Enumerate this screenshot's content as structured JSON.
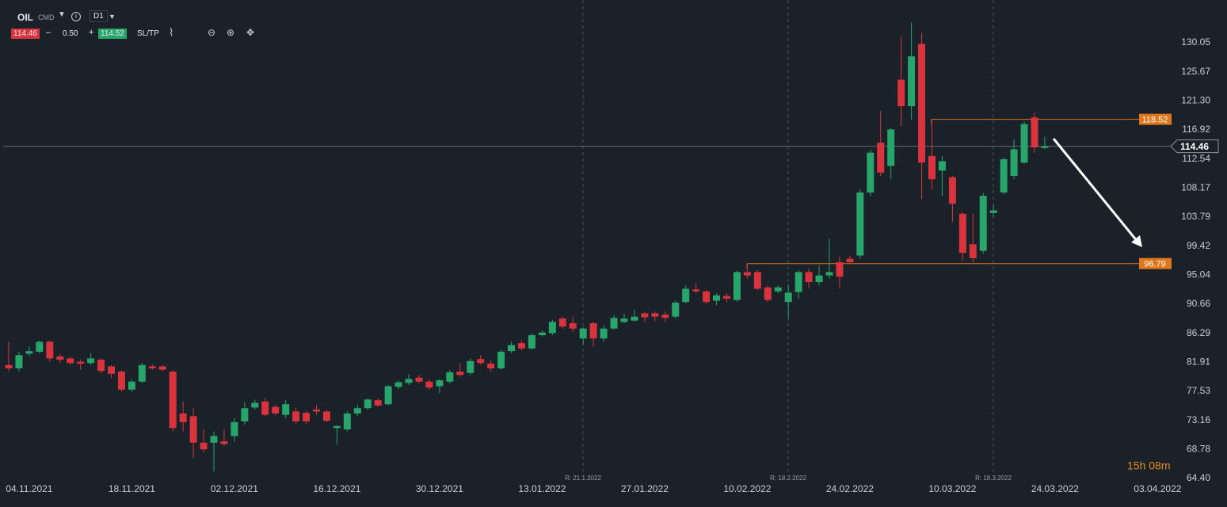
{
  "toolbar": {
    "symbol": "OIL",
    "market": "CMD",
    "timeframe": "D1",
    "bid": "114.46",
    "spread": "0.50",
    "ask": "114.52",
    "sltp": "SL/TP"
  },
  "chart_data": {
    "type": "candlestick",
    "categories": [
      null,
      null,
      "04.11.2021",
      null,
      null,
      null,
      null,
      null,
      null,
      null,
      null,
      null,
      "18.11.2021",
      null,
      null,
      null,
      null,
      null,
      null,
      null,
      null,
      null,
      "02.12.2021",
      null,
      null,
      null,
      null,
      null,
      null,
      null,
      null,
      null,
      "16.12.2021",
      null,
      null,
      null,
      null,
      null,
      null,
      null,
      null,
      null,
      "30.12.2021",
      null,
      null,
      null,
      null,
      null,
      null,
      null,
      null,
      null,
      "13.01.2022",
      null,
      null,
      null,
      null,
      null,
      null,
      null,
      null,
      null,
      "27.01.2022",
      null,
      null,
      null,
      null,
      null,
      null,
      null,
      null,
      null,
      "10.02.2022",
      null,
      null,
      null,
      null,
      null,
      null,
      null,
      null,
      null,
      "24.02.2022",
      null,
      null,
      null,
      null,
      null,
      null,
      null,
      null,
      null,
      "10.03.2022",
      null,
      null,
      null,
      null,
      null,
      null,
      null,
      null,
      null,
      "24.03.2022",
      null,
      null,
      null,
      null,
      null,
      null,
      null,
      null,
      null,
      "03.04.2022"
    ],
    "open": [
      81.5,
      81.0,
      83.2,
      83.5,
      85.0,
      82.8,
      82.5,
      82.0,
      81.8,
      82.3,
      81.3,
      80.5,
      77.8,
      79.0,
      81.3,
      81.3,
      80.5,
      74.2,
      73.8,
      69.8,
      69.8,
      70.0,
      70.8,
      73.0,
      75.1,
      76.0,
      75.2,
      74.0,
      74.5,
      74.3,
      74.8,
      74.5,
      72.0,
      71.8,
      74.2,
      75.0,
      76.2,
      75.6,
      78.2,
      78.8,
      79.6,
      79.0,
      78.3,
      79.0,
      80.5,
      80.3,
      82.4,
      81.7,
      81.0,
      83.6,
      84.8,
      84.0,
      86.0,
      86.3,
      88.5,
      87.8,
      85.5,
      87.8,
      85.5,
      87.0,
      88.0,
      88.2,
      89.3,
      89.3,
      89.1,
      88.8,
      91.0,
      92.9,
      92.6,
      91.2,
      91.9,
      91.3,
      95.5,
      95.5,
      93.2,
      92.6,
      91.0,
      92.5,
      95.5,
      94.0,
      95.0,
      97.0,
      97.5,
      98.0,
      107.5,
      115.0,
      111.5,
      124.5,
      120.5,
      129.9,
      113.0,
      110.8,
      109.8,
      104.3,
      99.7,
      98.7,
      104.4,
      107.5,
      110.0,
      112.0,
      118.8,
      114.2,
      null,
      null,
      null,
      null,
      null,
      null,
      null,
      null,
      null,
      null,
      null
    ],
    "high": [
      85,
      83.5,
      84.3,
      85.2,
      85.2,
      83.2,
      82.8,
      82.3,
      83.3,
      82.5,
      81.5,
      80.7,
      79.3,
      81.8,
      81.6,
      81.5,
      80.7,
      76.0,
      75.0,
      71.8,
      71.5,
      71.8,
      73.5,
      75.9,
      76.3,
      76.5,
      75.5,
      76.2,
      75.1,
      74.6,
      75.5,
      74.8,
      72.5,
      74.5,
      75.5,
      76.5,
      76.5,
      78.5,
      79.2,
      80.1,
      80.0,
      79.3,
      79.4,
      80.8,
      81.8,
      82.5,
      83.0,
      82.2,
      83.8,
      85.0,
      85.2,
      86.3,
      86.7,
      88.3,
      88.8,
      88.8,
      87.2,
      88.0,
      87.5,
      89.0,
      89.2,
      89.8,
      89.5,
      89.6,
      89.6,
      91.2,
      93.5,
      93.9,
      92.8,
      92.3,
      92.3,
      95.7,
      96.8,
      95.8,
      93.5,
      93.5,
      93.6,
      95.8,
      96.0,
      96.5,
      100.5,
      97.8,
      98.0,
      108.0,
      113.9,
      119.8,
      117.2,
      131.0,
      133.1,
      131.5,
      118.5,
      113.0,
      110.0,
      104.5,
      104.3,
      107.4,
      105.6,
      112.8,
      115.5,
      118.2,
      119.5,
      115.9,
      null,
      null,
      null,
      null,
      null,
      null,
      null,
      null,
      null,
      null,
      null
    ],
    "low": [
      80.5,
      80.5,
      82.8,
      83.3,
      82.0,
      81.8,
      81.5,
      80.8,
      81.5,
      80.3,
      79.5,
      77.5,
      77.5,
      78.8,
      80.8,
      80.6,
      71.5,
      71.5,
      67.5,
      68.3,
      65.5,
      69.3,
      70.0,
      72.5,
      74.8,
      73.8,
      73.9,
      73.5,
      72.7,
      72.5,
      74.0,
      72.9,
      69.5,
      71.5,
      73.8,
      74.8,
      75.2,
      75.4,
      77.9,
      78.5,
      78.8,
      77.8,
      77.3,
      78.7,
      79.7,
      80.0,
      81.5,
      80.5,
      80.8,
      83.3,
      83.7,
      83.8,
      85.8,
      86.0,
      87.0,
      86.5,
      84.5,
      84.3,
      85.0,
      86.8,
      87.8,
      88.0,
      88.0,
      88.1,
      88.0,
      88.5,
      90.8,
      92.3,
      90.7,
      90.5,
      91.0,
      91.0,
      94.5,
      92.8,
      91.0,
      92.3,
      88.5,
      91.5,
      93.0,
      93.5,
      94.5,
      93.0,
      96.7,
      97.5,
      107.0,
      110.0,
      109.5,
      117.5,
      118.5,
      106.5,
      108.0,
      107.0,
      103.0,
      97.2,
      97.0,
      98.3,
      103.8,
      107.2,
      109.5,
      111.8,
      113.5,
      114.0,
      null,
      null,
      null,
      null,
      null,
      null,
      null,
      null,
      null,
      null,
      null
    ],
    "close": [
      81.0,
      83.0,
      83.6,
      85.0,
      82.5,
      82.3,
      81.8,
      81.7,
      82.5,
      80.6,
      80.2,
      77.8,
      79.0,
      81.5,
      81.0,
      80.8,
      72.0,
      72.9,
      69.8,
      68.8,
      70.8,
      69.6,
      72.9,
      75.0,
      75.8,
      74.0,
      74.2,
      75.6,
      73.0,
      73.0,
      74.5,
      73.1,
      72.3,
      74.2,
      75.0,
      76.3,
      75.4,
      78.3,
      78.9,
      79.4,
      79.0,
      78.1,
      79.2,
      80.4,
      80.0,
      82.1,
      81.8,
      81.0,
      83.5,
      84.5,
      84.0,
      86.0,
      86.4,
      88.0,
      87.3,
      87.0,
      87.0,
      85.5,
      87.0,
      88.6,
      88.5,
      88.8,
      88.7,
      88.8,
      88.6,
      90.9,
      93.0,
      92.6,
      91.0,
      92.0,
      91.5,
      95.5,
      95.0,
      93.0,
      91.3,
      93.2,
      92.4,
      95.5,
      94.0,
      95.0,
      95.5,
      94.8,
      97.0,
      107.5,
      113.5,
      110.5,
      117.0,
      120.5,
      128.0,
      112.0,
      109.5,
      112.2,
      105.8,
      98.4,
      97.6,
      107.0,
      104.8,
      112.5,
      114.0,
      117.8,
      114.3,
      114.46,
      null,
      null,
      null,
      null,
      null,
      null,
      null,
      null,
      null,
      null,
      null
    ],
    "up_color": "#27a56b",
    "down_color": "#d9343e",
    "ylim": [
      61.9,
      136.5
    ],
    "yticks": [
      {
        "value": 64.4,
        "label": "64.40"
      },
      68.78,
      73.16,
      77.53,
      81.91,
      86.29,
      90.66,
      95.04,
      99.42,
      103.79,
      108.17,
      112.54,
      116.92,
      {
        "value": 121.3,
        "label": "121.30"
      },
      125.67,
      130.05
    ],
    "grid": false,
    "last_price": 114.46,
    "levels": [
      118.52,
      96.79
    ],
    "level_color": "#e0761c",
    "annotations": [
      "R: 21.1.2022",
      "R: 18.2.2022",
      "R: 18.3.2022"
    ],
    "countdown": "15h 08m"
  }
}
